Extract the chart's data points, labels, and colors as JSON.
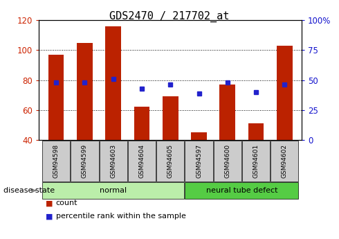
{
  "title": "GDS2470 / 217702_at",
  "samples": [
    "GSM94598",
    "GSM94599",
    "GSM94603",
    "GSM94604",
    "GSM94605",
    "GSM94597",
    "GSM94600",
    "GSM94601",
    "GSM94602"
  ],
  "counts": [
    97,
    105,
    116,
    62,
    69,
    45,
    77,
    51,
    103
  ],
  "percentiles": [
    48,
    48,
    51,
    43,
    46,
    39,
    48,
    40,
    46
  ],
  "groups": [
    {
      "label": "normal",
      "start": 0,
      "end": 4,
      "color": "#bbeeaa"
    },
    {
      "label": "neural tube defect",
      "start": 5,
      "end": 8,
      "color": "#55cc44"
    }
  ],
  "ylim_left": [
    40,
    120
  ],
  "ylim_right": [
    0,
    100
  ],
  "yticks_left": [
    40,
    60,
    80,
    100,
    120
  ],
  "yticks_right": [
    0,
    25,
    50,
    75,
    100
  ],
  "bar_color": "#bb2200",
  "dot_color": "#2222cc",
  "bar_width": 0.55,
  "baseline": 40,
  "left_tick_color": "#cc2200",
  "right_tick_color": "#1111cc",
  "legend_count_label": "count",
  "legend_pct_label": "percentile rank within the sample",
  "disease_state_label": "disease state",
  "xtick_box_color": "#cccccc",
  "grid_yticks": [
    60,
    80,
    100
  ],
  "title_fontsize": 11
}
